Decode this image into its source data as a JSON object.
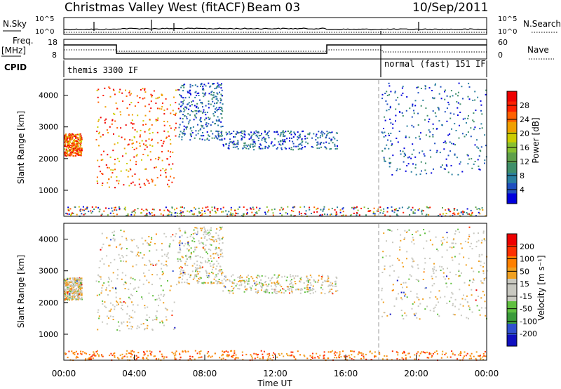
{
  "header": {
    "title": "Christmas Valley West (fitACF)",
    "beam": "Beam 03",
    "date": "10/Sep/2011"
  },
  "status": {
    "nsky_label": "N.Sky",
    "nsearch_label": "N.Search",
    "freq_label_1": "Freq.",
    "freq_label_2": "[MHz]",
    "nave_label": "Nave",
    "cpid_label": "CPID",
    "cpid_first": "themis 3300 IF",
    "cpid_second": "normal (fast) 151 IF",
    "noise_ticks_left": [
      "10^5",
      "10^0"
    ],
    "noise_ticks_right": [
      "10^5",
      "10^0"
    ],
    "freq_ticks": [
      "18",
      "8"
    ],
    "nave_ticks": [
      "60",
      "0"
    ]
  },
  "chart_data": [
    {
      "type": "heatmap",
      "panel": "power",
      "ylabel": "Slant Range [km]",
      "yticks": [
        1000,
        2000,
        3000,
        4000
      ],
      "ylim": [
        180,
        4500
      ],
      "xlim_hours": [
        0,
        24
      ],
      "colorbar_label": "Power [dB]",
      "colorbar_ticks": [
        "28",
        "24",
        "20",
        "16",
        "12",
        "8",
        "4"
      ],
      "colorbar_colors": [
        "#0000dd",
        "#1f4fbf",
        "#2a7fa0",
        "#3f8f6a",
        "#5fa04a",
        "#88c030",
        "#cccc00",
        "#f0a000",
        "#ff6000",
        "#ff2000",
        "#ee0000"
      ],
      "scatter_groups": [
        {
          "time_range": [
            1.8,
            6.5
          ],
          "range_km": [
            1100,
            4300
          ]
        },
        {
          "time_range": [
            0.0,
            1.0
          ],
          "range_km": [
            2100,
            2800
          ]
        },
        {
          "time_range": [
            6.5,
            9.0
          ],
          "range_km": [
            2600,
            4400
          ]
        },
        {
          "time_range": [
            9.0,
            15.5
          ],
          "range_km": [
            2300,
            2900
          ]
        },
        {
          "time_range": [
            18.0,
            24.0
          ],
          "range_km": [
            1500,
            4400
          ]
        },
        {
          "time_range": [
            0.0,
            24.0
          ],
          "range_km": [
            200,
            500
          ]
        }
      ]
    },
    {
      "type": "heatmap",
      "panel": "velocity",
      "ylabel": "Slant Range [km]",
      "yticks": [
        1000,
        2000,
        3000,
        4000
      ],
      "ylim": [
        180,
        4500
      ],
      "xlim_hours": [
        0,
        24
      ],
      "xticks": [
        "00:00",
        "04:00",
        "08:00",
        "12:00",
        "16:00",
        "20:00",
        "00:00"
      ],
      "xlabel": "Time UT",
      "colorbar_label": "Velocity [m s⁻¹]",
      "colorbar_ticks": [
        "200",
        "100",
        "50",
        "15",
        "-15",
        "-50",
        "-100",
        "-200"
      ],
      "colorbar_colors": [
        "#1010c0",
        "#3050d0",
        "#3a9a3a",
        "#60c040",
        "#c8c8c0",
        "#c8c8c0",
        "#f0a020",
        "#ff8000",
        "#ff3000",
        "#ee0000"
      ],
      "scatter_groups": [
        {
          "time_range": [
            1.8,
            6.5
          ],
          "range_km": [
            1100,
            4300
          ]
        },
        {
          "time_range": [
            0.0,
            1.0
          ],
          "range_km": [
            2100,
            2800
          ]
        },
        {
          "time_range": [
            6.5,
            9.0
          ],
          "range_km": [
            2600,
            4400
          ]
        },
        {
          "time_range": [
            9.0,
            15.5
          ],
          "range_km": [
            2300,
            2900
          ]
        },
        {
          "time_range": [
            18.0,
            24.0
          ],
          "range_km": [
            1500,
            4400
          ]
        },
        {
          "time_range": [
            0.0,
            24.0
          ],
          "range_km": [
            200,
            500
          ]
        }
      ]
    }
  ]
}
